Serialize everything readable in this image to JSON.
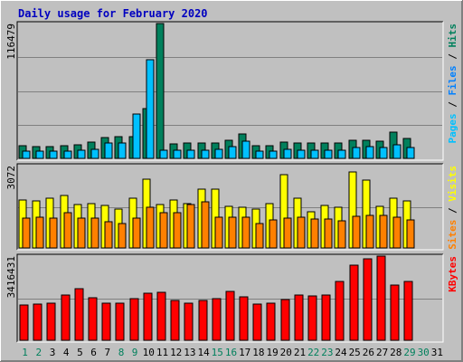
{
  "chart_data": {
    "type": "bar",
    "title": "Daily usage for February 2020",
    "categories": [
      "1",
      "2",
      "3",
      "4",
      "5",
      "6",
      "7",
      "8",
      "9",
      "10",
      "11",
      "12",
      "13",
      "14",
      "15",
      "16",
      "17",
      "18",
      "19",
      "20",
      "21",
      "22",
      "23",
      "24",
      "25",
      "26",
      "27",
      "28",
      "29",
      "30",
      "31"
    ],
    "weekend_days": [
      "1",
      "2",
      "8",
      "9",
      "15",
      "16",
      "22",
      "23",
      "29",
      "30"
    ],
    "panels": [
      {
        "id": "hits-files-pages",
        "scale_label": "116479",
        "ymax": 116479,
        "right_label": [
          "Pages",
          " / ",
          "Files",
          " / ",
          "Hits"
        ],
        "series": [
          {
            "name": "Hits",
            "color": "#00805c",
            "values": [
              11000,
              10200,
              10000,
              11200,
              12000,
              14300,
              18000,
              18500,
              18800,
              43000,
              116479,
              12500,
              13000,
              13000,
              13000,
              16000,
              21000,
              11000,
              11000,
              14000,
              13000,
              13000,
              13000,
              13000,
              16000,
              16000,
              15000,
              23000,
              17000,
              0,
              0
            ]
          },
          {
            "name": "Files",
            "color": "#00c0ff",
            "values": [
              6000,
              6200,
              6500,
              6000,
              7000,
              8000,
              13000,
              13000,
              38000,
              85000,
              7000,
              7000,
              7200,
              7000,
              8000,
              10000,
              15000,
              6000,
              6200,
              8000,
              7200,
              7000,
              7000,
              7000,
              9000,
              10500,
              9000,
              12000,
              9000,
              0,
              0
            ]
          },
          {
            "name": "Pages",
            "color": "#00c0ff",
            "values": []
          }
        ]
      },
      {
        "id": "visits-sites",
        "scale_label": "3072",
        "ymax": 3072,
        "right_label": [
          "Sites",
          " / ",
          "Visits"
        ],
        "series": [
          {
            "name": "Visits",
            "color": "#ffff00",
            "values": [
              1800,
              1760,
              1850,
              1970,
              1630,
              1670,
              1590,
              1440,
              1850,
              2560,
              1630,
              1780,
              1650,
              2200,
              2200,
              1560,
              1520,
              1460,
              1660,
              2720,
              1860,
              1340,
              1570,
              1510,
              2840,
              2530,
              1560,
              1840,
              1750,
              0,
              0
            ]
          },
          {
            "name": "Sites",
            "color": "#ff8000",
            "values": [
              1130,
              1160,
              1110,
              1310,
              1130,
              1130,
              990,
              920,
              1100,
              1510,
              1320,
              1320,
              1630,
              1730,
              1150,
              1160,
              1140,
              920,
              1040,
              1110,
              1160,
              1080,
              1070,
              1000,
              1190,
              1200,
              1220,
              1140,
              1030,
              0,
              0
            ]
          }
        ]
      },
      {
        "id": "kbytes",
        "scale_label": "3416431",
        "ymax": 3416431,
        "right_label": [
          "KBytes"
        ],
        "series": [
          {
            "name": "KBytes",
            "color": "#ff0000",
            "values": [
              1440000,
              1480000,
              1500000,
              1820000,
              2090000,
              1720000,
              1510000,
              1520000,
              1680000,
              1910000,
              1950000,
              1630000,
              1510000,
              1600000,
              1690000,
              1970000,
              1760000,
              1470000,
              1490000,
              1640000,
              1830000,
              1800000,
              1840000,
              2380000,
              3040000,
              3300000,
              3416431,
              2240000,
              2400000,
              0,
              0
            ]
          }
        ]
      }
    ]
  }
}
